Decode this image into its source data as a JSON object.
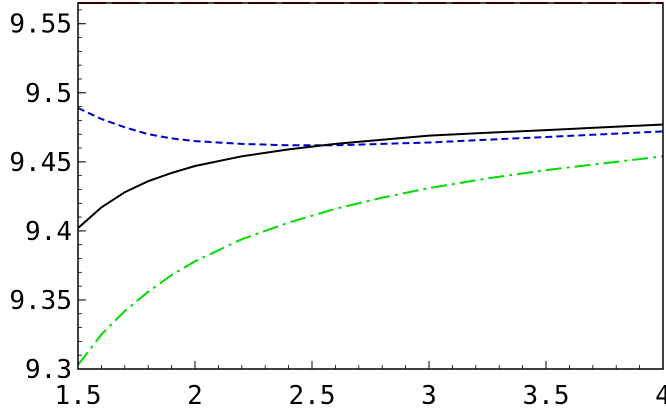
{
  "chart_data": {
    "type": "line",
    "title": "",
    "xlabel": "",
    "ylabel": "",
    "xlim": [
      1.5,
      4.0
    ],
    "ylim": [
      9.3,
      9.565
    ],
    "grid": false,
    "legend": "none",
    "x_ticks": [
      "1.5",
      "2",
      "2.5",
      "3",
      "3.5",
      "4"
    ],
    "y_ticks": [
      "9.3",
      "9.35",
      "9.4",
      "9.45",
      "9.5",
      "9.55"
    ],
    "series": [
      {
        "color": "#dd0000",
        "dash": "long-dash",
        "x": [
          1.5,
          4.0
        ],
        "y": [
          9.565,
          9.565
        ]
      },
      {
        "color": "#0000cc",
        "dash": "short-dash",
        "x": [
          1.5,
          1.6,
          1.7,
          1.8,
          1.9,
          2.0,
          2.2,
          2.4,
          2.6,
          2.8,
          3.0,
          3.25,
          3.5,
          3.75,
          4.0
        ],
        "y": [
          9.489,
          9.481,
          9.475,
          9.47,
          9.467,
          9.465,
          9.463,
          9.462,
          9.462,
          9.463,
          9.464,
          9.466,
          9.468,
          9.47,
          9.472
        ]
      },
      {
        "color": "#000000",
        "dash": "solid",
        "x": [
          1.5,
          1.6,
          1.7,
          1.8,
          1.9,
          2.0,
          2.2,
          2.4,
          2.6,
          2.8,
          3.0,
          3.25,
          3.5,
          3.75,
          4.0
        ],
        "y": [
          9.402,
          9.417,
          9.428,
          9.436,
          9.442,
          9.447,
          9.454,
          9.459,
          9.463,
          9.466,
          9.469,
          9.471,
          9.473,
          9.475,
          9.477
        ]
      },
      {
        "color": "#00dd00",
        "dash": "dash-dot",
        "x": [
          1.5,
          1.6,
          1.7,
          1.8,
          1.9,
          2.0,
          2.2,
          2.4,
          2.6,
          2.8,
          3.0,
          3.25,
          3.5,
          3.75,
          4.0
        ],
        "y": [
          9.303,
          9.325,
          9.342,
          9.356,
          9.368,
          9.378,
          9.394,
          9.406,
          9.416,
          9.424,
          9.431,
          9.438,
          9.444,
          9.449,
          9.454
        ]
      }
    ]
  }
}
